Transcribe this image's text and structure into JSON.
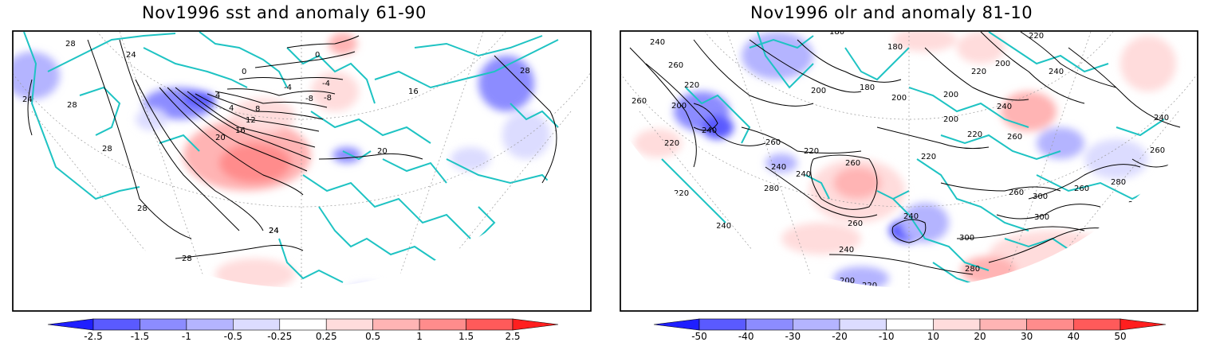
{
  "panels": [
    {
      "title": "Nov1996 sst and anomaly 61-90",
      "contour_labels": [
        "28",
        "24",
        "28",
        "28",
        "24",
        "24",
        "28",
        "0",
        "0",
        "-4",
        "-4",
        "-8",
        "-8",
        "4",
        "4",
        "8",
        "12",
        "16",
        "20",
        "20",
        "16",
        "28",
        "24",
        "28"
      ],
      "colorbar": {
        "labels": [
          "-2.5",
          "-1.5",
          "-1",
          "-0.5",
          "-0.25",
          "0.25",
          "0.5",
          "1",
          "1.5",
          "2.5"
        ],
        "colors": [
          "#1f1fff",
          "#5a5aff",
          "#8c8cff",
          "#b4b4ff",
          "#dcdcff",
          "#ffffff",
          "#ffdcdc",
          "#ffb4b4",
          "#ff8c8c",
          "#ff5a5a",
          "#ff1f1f"
        ]
      }
    },
    {
      "title": "Nov1996 olr and anomaly 81-10",
      "contour_labels": [
        "240",
        "260",
        "260",
        "220",
        "200",
        "240",
        "220",
        "220",
        "240",
        "260",
        "280",
        "240",
        "260",
        "220",
        "240",
        "180",
        "180",
        "180",
        "200",
        "200",
        "200",
        "220",
        "200",
        "220",
        "200",
        "240",
        "260",
        "220",
        "240",
        "260",
        "300",
        "260",
        "280",
        "240",
        "300",
        "300",
        "220",
        "200",
        "240",
        "260",
        "280",
        "220",
        "240",
        "260",
        "200",
        "220",
        "240",
        "280",
        "260",
        "240",
        "220"
      ],
      "colorbar": {
        "labels": [
          "-50",
          "-40",
          "-30",
          "-20",
          "-10",
          "10",
          "20",
          "30",
          "40",
          "50"
        ],
        "colors": [
          "#1f1fff",
          "#5a5aff",
          "#8c8cff",
          "#b4b4ff",
          "#dcdcff",
          "#ffffff",
          "#ffdcdc",
          "#ffb4b4",
          "#ff8c8c",
          "#ff5a5a",
          "#ff1f1f"
        ]
      }
    }
  ]
}
